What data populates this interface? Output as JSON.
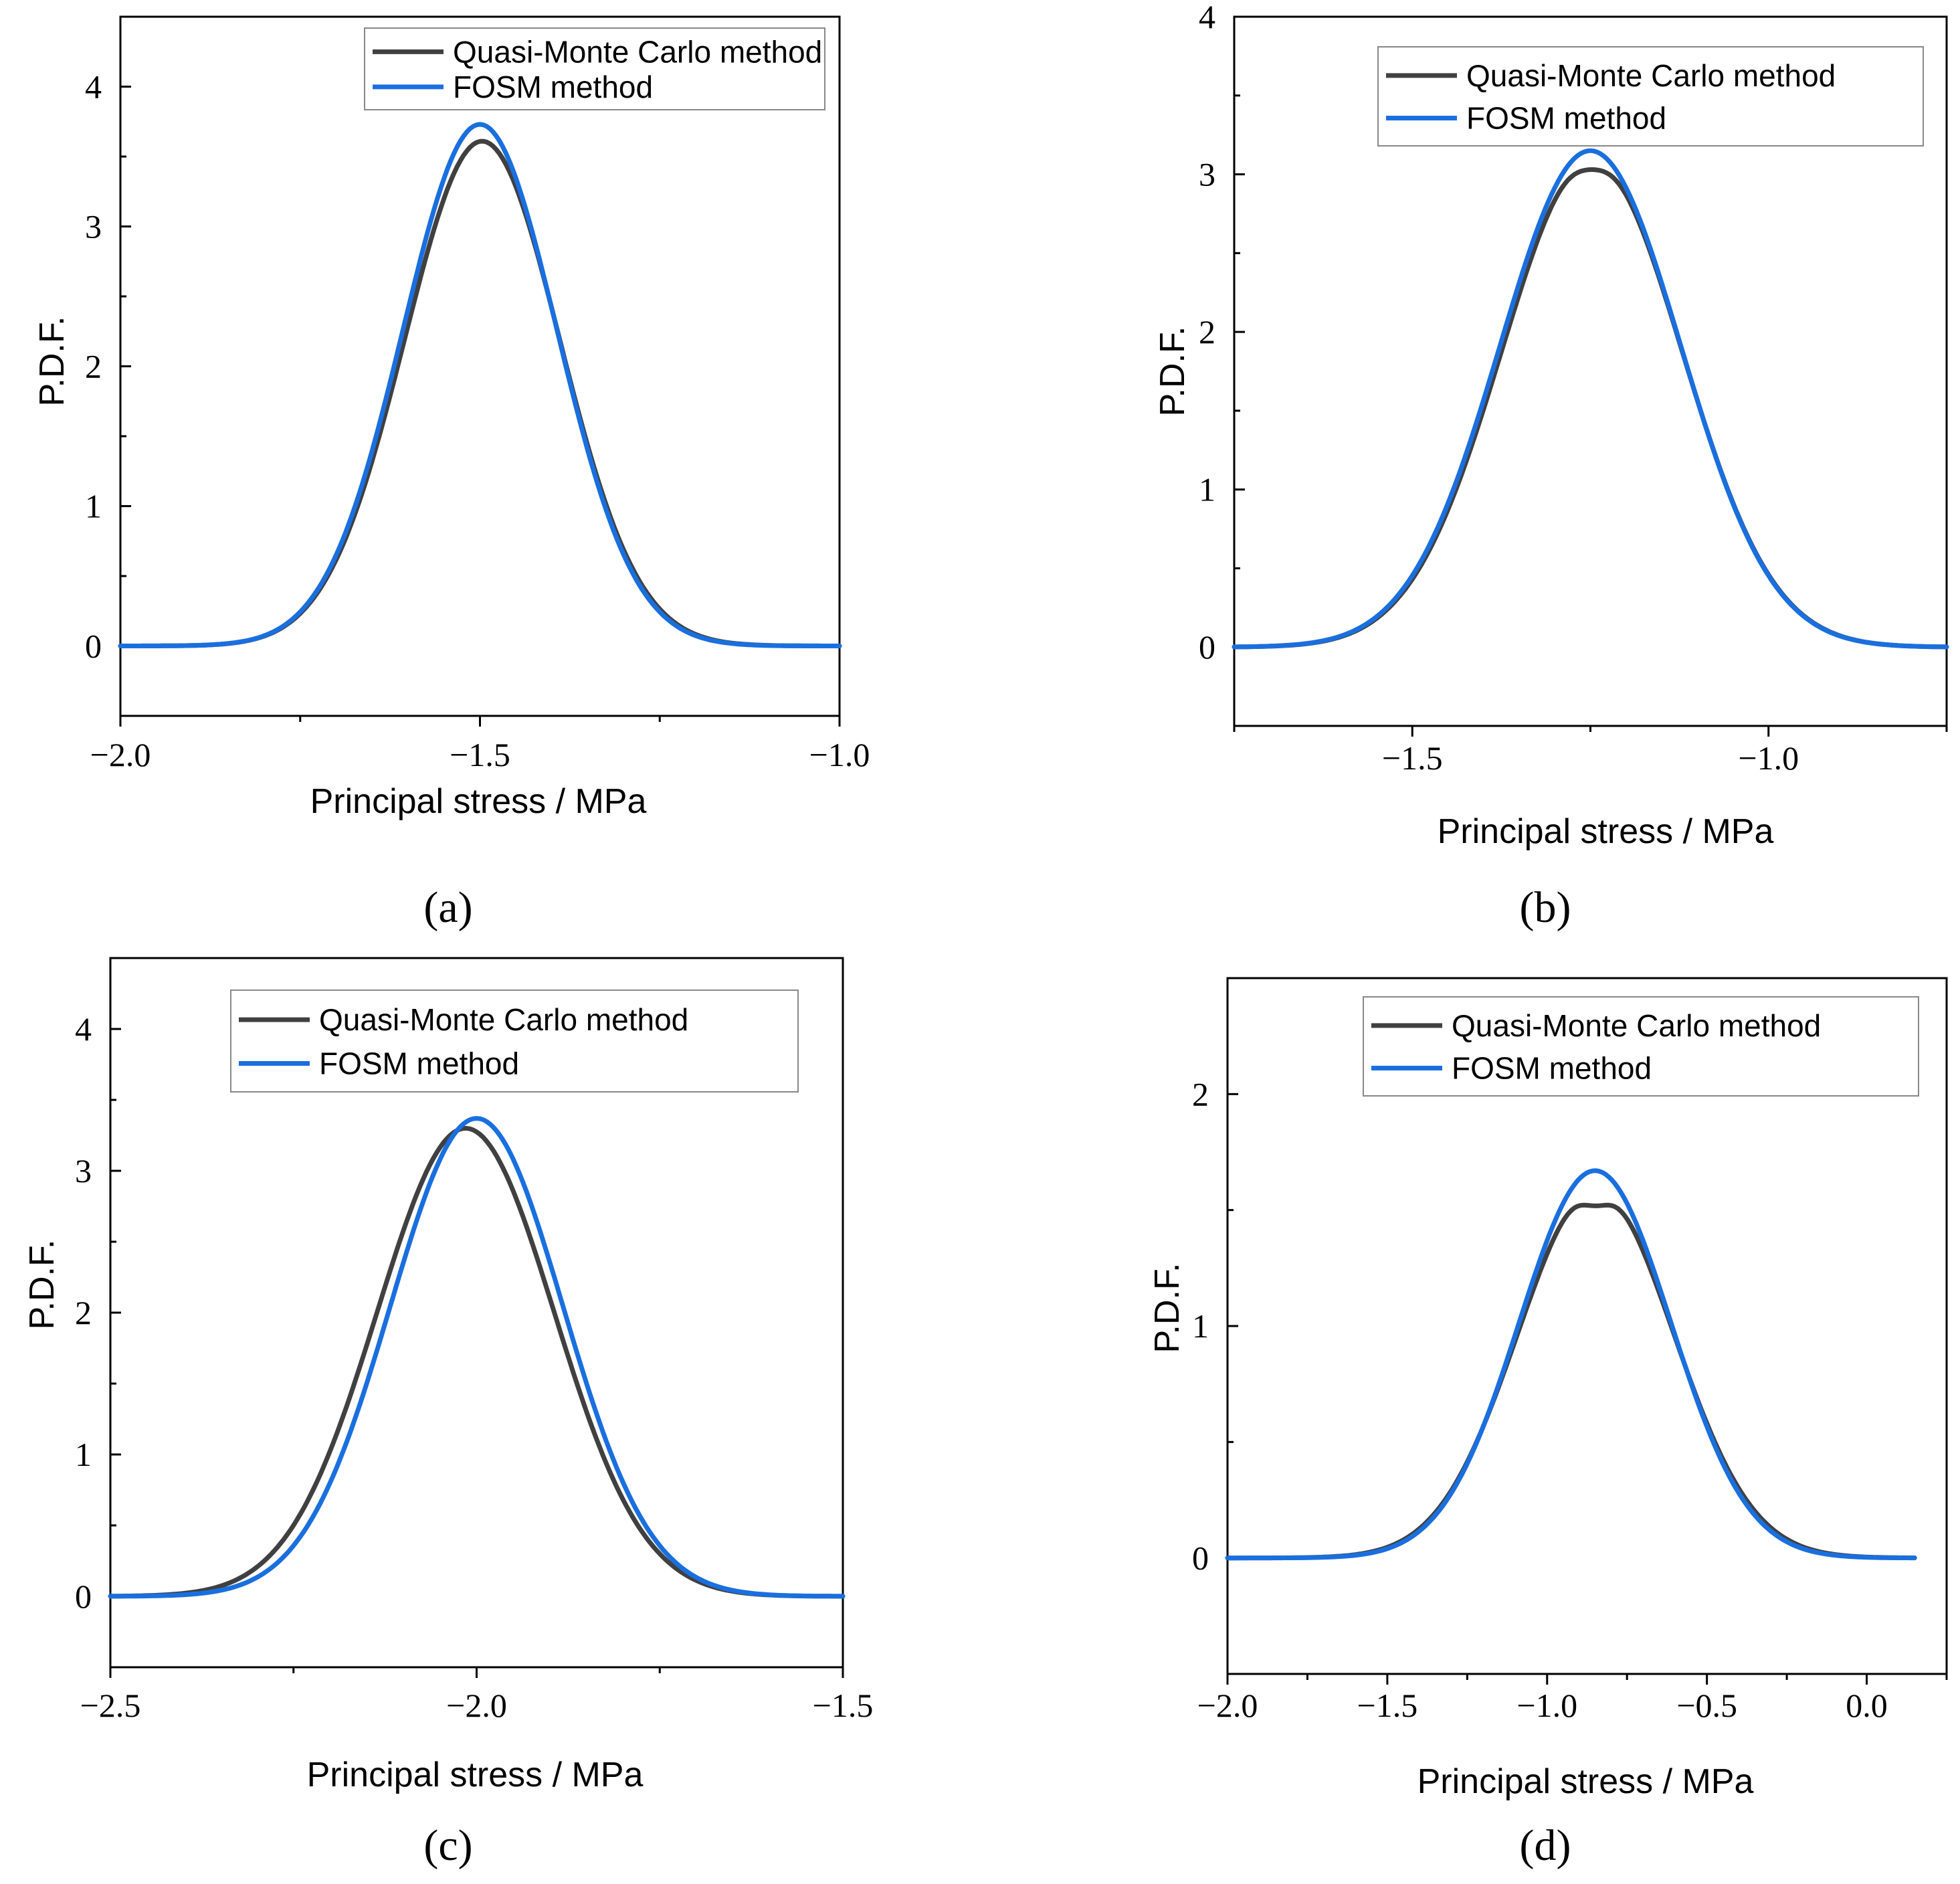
{
  "colors": {
    "qmc": "#404040",
    "fosm": "#1a6fdf"
  },
  "chart_data": [
    {
      "type": "line",
      "panel": "a",
      "caption": "(a)",
      "xlabel": "Principal stress / MPa",
      "ylabel": "P.D.F.",
      "xlim": [
        -2.0,
        -1.0
      ],
      "ylim": [
        -0.5,
        4.5
      ],
      "xticks": [
        -2.0,
        -1.5,
        -1.0
      ],
      "xtick_labels": [
        "−2.0",
        "−1.5",
        "−1.0"
      ],
      "yticks": [
        0,
        1,
        2,
        3,
        4
      ],
      "ytick_labels": [
        "0",
        "1",
        "2",
        "3",
        "4"
      ],
      "legend": [
        "Quasi-Monte Carlo method",
        "FOSM method"
      ],
      "legend_position": "top-right",
      "series": [
        {
          "name": "Quasi-Monte Carlo method",
          "mean": -1.497,
          "sd": 0.108,
          "peak": 3.61,
          "x_range": [
            -2.0,
            -1.0
          ]
        },
        {
          "name": "FOSM method",
          "mean": -1.5,
          "sd": 0.107,
          "peak": 3.73,
          "x_range": [
            -2.0,
            -1.0
          ]
        }
      ]
    },
    {
      "type": "line",
      "panel": "b",
      "caption": "(b)",
      "xlabel": "Principal stress / MPa",
      "ylabel": "P.D.F.",
      "xlim": [
        -1.75,
        -0.75
      ],
      "ylim": [
        -0.5,
        4.0
      ],
      "xticks": [
        -1.5,
        -1.0
      ],
      "xtick_labels": [
        "−1.5",
        "−1.0"
      ],
      "yticks": [
        0,
        1,
        2,
        3,
        4
      ],
      "ytick_labels": [
        "0",
        "1",
        "2",
        "3",
        "4"
      ],
      "legend": [
        "Quasi-Monte Carlo method",
        "FOSM method"
      ],
      "legend_position": "top-right",
      "series": [
        {
          "name": "Quasi-Monte Carlo method",
          "mean": -1.248,
          "sd": 0.127,
          "peak": 3.09,
          "dip": 0.1,
          "x_range": [
            -1.75,
            -0.75
          ]
        },
        {
          "name": "FOSM method",
          "mean": -1.25,
          "sd": 0.127,
          "peak": 3.15,
          "x_range": [
            -1.75,
            -0.75
          ]
        }
      ]
    },
    {
      "type": "line",
      "panel": "c",
      "caption": "(c)",
      "xlabel": "Principal stress / MPa",
      "ylabel": "P.D.F.",
      "xlim": [
        -2.5,
        -1.5
      ],
      "ylim": [
        -0.5,
        4.5
      ],
      "xticks": [
        -2.5,
        -2.0,
        -1.5
      ],
      "xtick_labels": [
        "−2.5",
        "−2.0",
        "−1.5"
      ],
      "yticks": [
        0,
        1,
        2,
        3,
        4
      ],
      "ytick_labels": [
        "0",
        "1",
        "2",
        "3",
        "4"
      ],
      "legend": [
        "Quasi-Monte Carlo method",
        "FOSM method"
      ],
      "legend_position": "top-right",
      "series": [
        {
          "name": "Quasi-Monte Carlo method",
          "mean": -2.015,
          "sd": 0.121,
          "peak": 3.3,
          "x_range": [
            -2.5,
            -1.5
          ]
        },
        {
          "name": "FOSM method",
          "mean": -2.0,
          "sd": 0.118,
          "peak": 3.37,
          "x_range": [
            -2.5,
            -1.5
          ]
        }
      ]
    },
    {
      "type": "line",
      "panel": "d",
      "caption": "(d)",
      "xlabel": "Principal stress / MPa",
      "ylabel": "P.D.F.",
      "xlim": [
        -2.0,
        0.25
      ],
      "ylim": [
        -0.5,
        2.5
      ],
      "xticks": [
        -2.0,
        -1.5,
        -1.0,
        -0.5,
        0.0
      ],
      "xtick_labels": [
        "−2.0",
        "−1.5",
        "−1.0",
        "−0.5",
        "0.0"
      ],
      "yticks": [
        0,
        1,
        2
      ],
      "ytick_labels": [
        "0",
        "1",
        "2"
      ],
      "legend": [
        "Quasi-Monte Carlo method",
        "FOSM method"
      ],
      "legend_position": "top-right",
      "series": [
        {
          "name": "Quasi-Monte Carlo method",
          "mean": -0.848,
          "sd": 0.245,
          "peak": 1.59,
          "dip": 0.12,
          "x_range": [
            -2.0,
            0.15
          ]
        },
        {
          "name": "FOSM method",
          "mean": -0.85,
          "sd": 0.238,
          "peak": 1.67,
          "x_range": [
            -2.0,
            0.15
          ]
        }
      ]
    }
  ]
}
